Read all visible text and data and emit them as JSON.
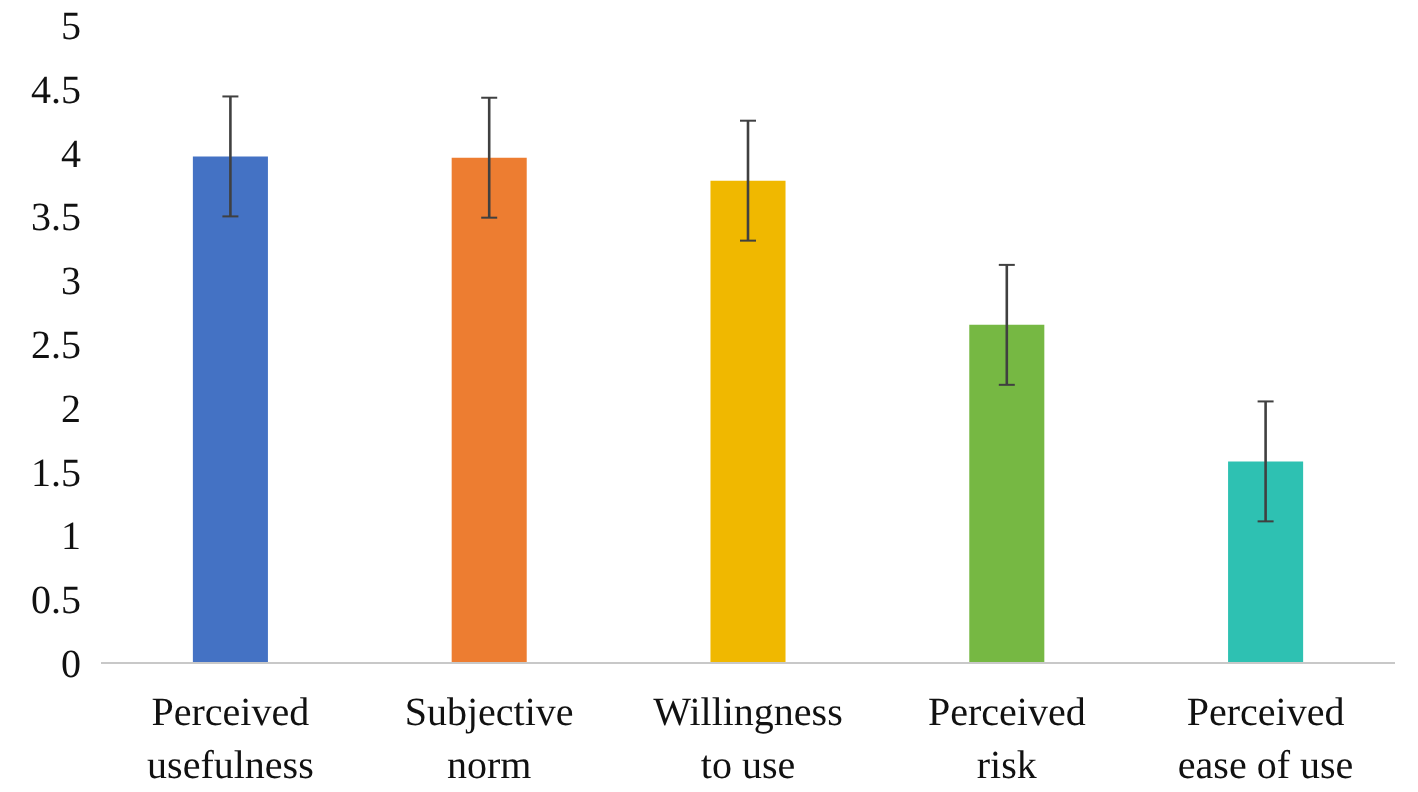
{
  "chart_data": {
    "type": "bar",
    "categories": [
      "Perceived usefulness",
      "Subjective norm",
      "Willingness to use",
      "Perceived risk",
      "Perceived ease of use"
    ],
    "values": [
      3.97,
      3.96,
      3.78,
      2.65,
      1.58
    ],
    "colors": [
      "#4472c4",
      "#ed7d31",
      "#f0b800",
      "#76b843",
      "#2ec1b2"
    ],
    "errors": [
      0.47,
      0.47,
      0.47,
      0.47,
      0.47
    ],
    "ylim": [
      0,
      5
    ],
    "yticks": [
      0,
      0.5,
      1,
      1.5,
      2,
      2.5,
      3,
      3.5,
      4,
      4.5,
      5
    ],
    "grid": false
  }
}
